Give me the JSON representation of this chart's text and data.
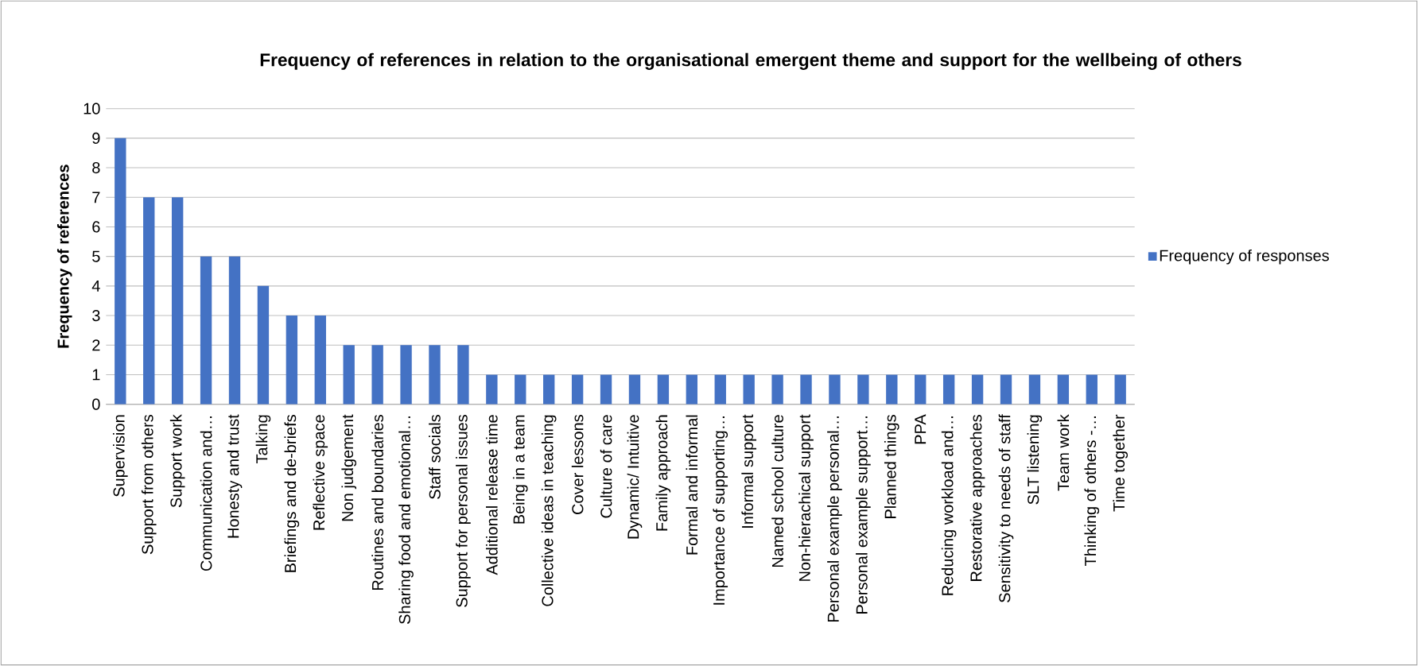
{
  "chart_data": {
    "type": "bar",
    "title": "Frequency of references in relation  to the organisational emergent theme and support for the wellbeing of others",
    "ylabel": "Frequency of references",
    "categories": [
      "Supervision",
      "Support from others",
      "Support work",
      "Communication and…",
      "Honesty and trust",
      "Talking",
      "Briefings and de-briefs",
      "Reflective space",
      "Non judgement",
      "Routines and boundaries",
      "Sharing food and emotional…",
      "Staff socials",
      "Support for personal issues",
      "Additional release time",
      "Being in a team",
      "Collective ideas in teaching",
      "Cover lessons",
      "Culture of care",
      "Dynamic/ Intuitive",
      "Family approach",
      "Formal and informal",
      "Importance of supporting…",
      "Informal support",
      "Named school culture",
      "Non-hierachical support",
      "Personal example personal…",
      "Personal example support…",
      "Planned things",
      "PPA",
      "Reducing workload and…",
      "Restorative approaches",
      "Sensitivity to needs of staff",
      "SLT listening",
      "Team work",
      "Thinking of others -…",
      "Time together"
    ],
    "series": [
      {
        "name": "Frequency of responses",
        "color": "#4472c4",
        "values": [
          9,
          7,
          7,
          5,
          5,
          4,
          3,
          3,
          2,
          2,
          2,
          2,
          2,
          1,
          1,
          1,
          1,
          1,
          1,
          1,
          1,
          1,
          1,
          1,
          1,
          1,
          1,
          1,
          1,
          1,
          1,
          1,
          1,
          1,
          1,
          1
        ]
      }
    ],
    "ylim": [
      0,
      10
    ],
    "yticks": [
      0,
      1,
      2,
      3,
      4,
      5,
      6,
      7,
      8,
      9,
      10
    ],
    "grid": "y",
    "legend": "right"
  }
}
